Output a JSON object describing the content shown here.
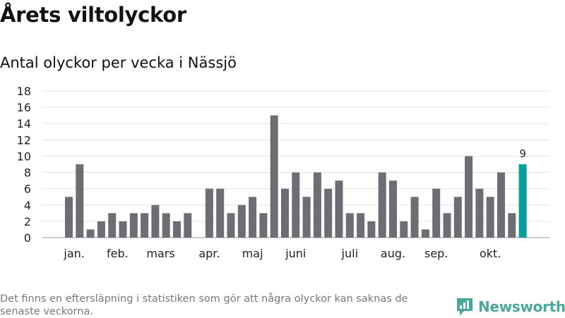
{
  "header": {
    "title": "Årets viltolyckor",
    "subtitle": "Antal olyckor per vecka i Nässjö"
  },
  "footer": {
    "note": "Det finns en eftersläpning i statistiken som gör att några olyckor kan saknas de senaste veckorna.",
    "brand": "Newsworthy",
    "brand_icon": "bar-chart-logo-icon"
  },
  "colors": {
    "bar": "#6e6d73",
    "highlight": "#00a19a",
    "grid": "#e3e3e3",
    "brand": "#4aa79d"
  },
  "chart_data": {
    "type": "bar",
    "title": "Årets viltolyckor",
    "subtitle": "Antal olyckor per vecka i Nässjö",
    "x": [
      1,
      2,
      3,
      4,
      5,
      6,
      7,
      8,
      9,
      10,
      11,
      12,
      13,
      14,
      15,
      16,
      17,
      18,
      19,
      20,
      21,
      22,
      23,
      24,
      25,
      26,
      27,
      28,
      29,
      30,
      31,
      32,
      33,
      34,
      35,
      36,
      37,
      38,
      39,
      40,
      41,
      42,
      43,
      44,
      45
    ],
    "values": [
      5,
      9,
      1,
      2,
      3,
      2,
      3,
      3,
      4,
      3,
      2,
      3,
      null,
      6,
      6,
      3,
      4,
      5,
      3,
      15,
      6,
      8,
      5,
      8,
      6,
      7,
      3,
      3,
      2,
      8,
      7,
      2,
      5,
      1,
      6,
      3,
      5,
      10,
      6,
      5,
      8,
      3,
      9,
      null,
      null
    ],
    "highlight": {
      "index": 42,
      "label": "9"
    },
    "ylim": [
      0,
      18
    ],
    "yticks": [
      0,
      2,
      4,
      6,
      8,
      10,
      12,
      14,
      16,
      18
    ],
    "month_labels": [
      {
        "label": "jan.",
        "x": 1.5
      },
      {
        "label": "feb.",
        "x": 5.5
      },
      {
        "label": "mars",
        "x": 9.5
      },
      {
        "label": "apr.",
        "x": 14
      },
      {
        "label": "maj",
        "x": 18
      },
      {
        "label": "juni",
        "x": 22
      },
      {
        "label": "juli",
        "x": 27
      },
      {
        "label": "aug.",
        "x": 31
      },
      {
        "label": "sep.",
        "x": 35
      },
      {
        "label": "okt.",
        "x": 40
      }
    ],
    "grid": true,
    "legend": "none"
  }
}
